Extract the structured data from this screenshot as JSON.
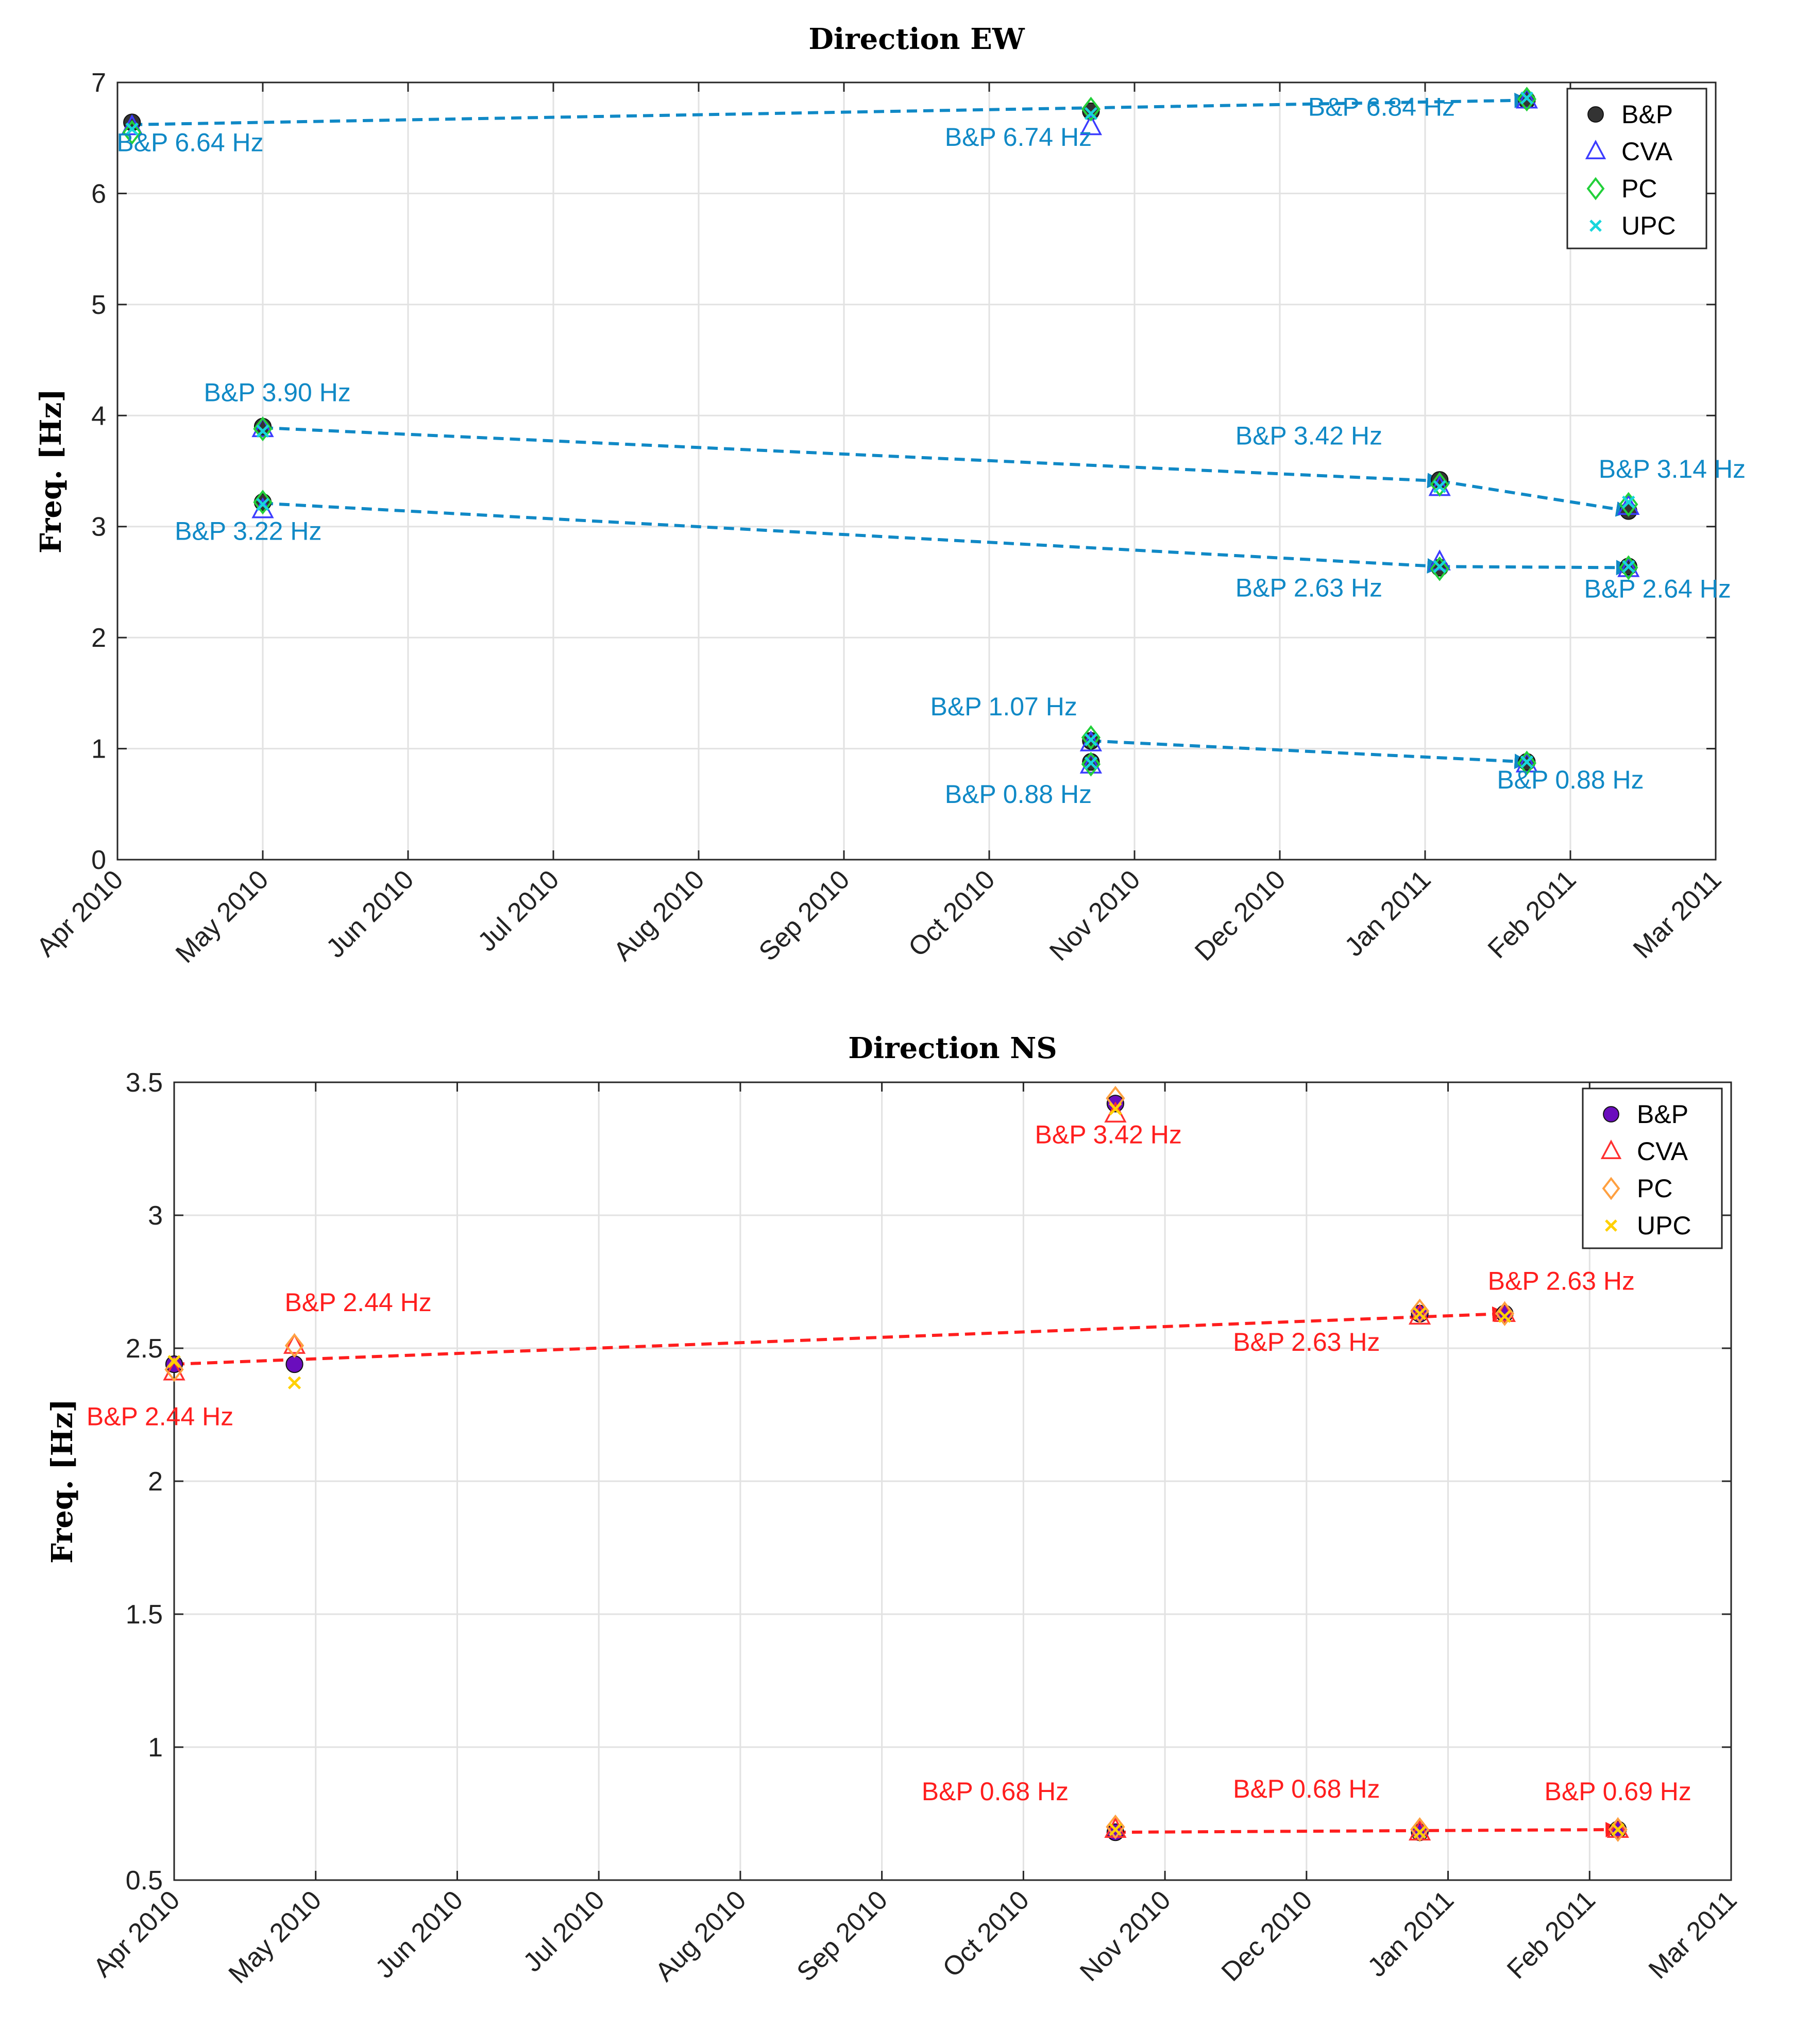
{
  "chart_data": [
    {
      "type": "scatter",
      "title": "Direction EW",
      "ylabel": "Freq. [Hz]",
      "xlabel": "",
      "ylim": [
        0,
        7
      ],
      "yticks": [
        0,
        1,
        2,
        3,
        4,
        5,
        6,
        7
      ],
      "x_tick_labels": [
        "Apr 2010",
        "May 2010",
        "Jun 2010",
        "Jul 2010",
        "Aug 2010",
        "Sep 2010",
        "Oct 2010",
        "Nov 2010",
        "Dec 2010",
        "Jan 2011",
        "Feb 2011",
        "Mar 2011"
      ],
      "x_unit": "months since Apr 2010",
      "color": "#1089c6",
      "legend": {
        "position": "top-right",
        "entries": [
          {
            "name": "B&P",
            "color": "#333333",
            "marker": "circle"
          },
          {
            "name": "CVA",
            "color": "#3c3cff",
            "marker": "triangle"
          },
          {
            "name": "PC",
            "color": "#22d03a",
            "marker": "diamond"
          },
          {
            "name": "UPC",
            "color": "#17d6dc",
            "marker": "x"
          }
        ]
      },
      "series": [
        {
          "name": "B&P",
          "x": [
            0.1,
            1.0,
            1.0,
            6.7,
            6.7,
            6.7,
            9.1,
            9.1,
            9.7,
            9.7,
            10.4,
            10.4
          ],
          "y": [
            6.64,
            3.9,
            3.22,
            6.74,
            1.07,
            0.88,
            3.42,
            2.63,
            6.84,
            0.88,
            3.14,
            2.64
          ]
        },
        {
          "name": "CVA",
          "x": [
            0.1,
            1.0,
            1.0,
            6.7,
            6.7,
            6.7,
            9.1,
            9.1,
            9.7,
            9.7,
            10.4,
            10.4
          ],
          "y": [
            6.6,
            3.88,
            3.15,
            6.6,
            1.05,
            0.85,
            3.35,
            2.68,
            6.84,
            0.86,
            3.18,
            2.62
          ]
        },
        {
          "name": "PC",
          "x": [
            0.1,
            1.0,
            1.0,
            6.7,
            6.7,
            6.7,
            9.1,
            9.1,
            9.7,
            9.7,
            10.4,
            10.4
          ],
          "y": [
            6.55,
            3.88,
            3.22,
            6.76,
            1.1,
            0.86,
            3.38,
            2.62,
            6.85,
            0.87,
            3.2,
            2.63
          ]
        },
        {
          "name": "UPC",
          "x": [
            0.1,
            1.0,
            1.0,
            6.7,
            6.7,
            6.7,
            9.1,
            9.1,
            9.7,
            9.7,
            10.4,
            10.4
          ],
          "y": [
            6.58,
            3.86,
            3.2,
            6.72,
            1.08,
            0.87,
            3.36,
            2.64,
            6.86,
            0.88,
            3.22,
            2.64
          ]
        }
      ],
      "arrows": [
        {
          "from": [
            0.1,
            6.62
          ],
          "to": [
            9.7,
            6.84
          ]
        },
        {
          "from": [
            1.0,
            3.89
          ],
          "to": [
            9.1,
            3.41
          ]
        },
        {
          "from": [
            9.1,
            3.41
          ],
          "to": [
            10.4,
            3.14
          ]
        },
        {
          "from": [
            1.0,
            3.21
          ],
          "to": [
            9.1,
            2.64
          ]
        },
        {
          "from": [
            9.1,
            2.64
          ],
          "to": [
            10.4,
            2.63
          ]
        },
        {
          "from": [
            6.7,
            1.07
          ],
          "to": [
            9.7,
            0.88
          ]
        }
      ],
      "annotations": [
        {
          "text": "B&P 6.64 Hz",
          "x": 0.5,
          "y": 6.38
        },
        {
          "text": "B&P 6.74 Hz",
          "x": 6.2,
          "y": 6.43
        },
        {
          "text": "B&P 6.84 Hz",
          "x": 8.7,
          "y": 6.7
        },
        {
          "text": "B&P 3.90 Hz",
          "x": 1.1,
          "y": 4.13
        },
        {
          "text": "B&P 3.42 Hz",
          "x": 8.2,
          "y": 3.74
        },
        {
          "text": "B&P 3.14 Hz",
          "x": 10.7,
          "y": 3.44
        },
        {
          "text": "B&P 3.22 Hz",
          "x": 0.9,
          "y": 2.88
        },
        {
          "text": "B&P 2.63 Hz",
          "x": 8.2,
          "y": 2.37
        },
        {
          "text": "B&P 2.64 Hz",
          "x": 10.6,
          "y": 2.36
        },
        {
          "text": "B&P 1.07 Hz",
          "x": 6.1,
          "y": 1.3
        },
        {
          "text": "B&P 0.88 Hz",
          "x": 6.2,
          "y": 0.51
        },
        {
          "text": "B&P 0.88 Hz",
          "x": 10.0,
          "y": 0.64
        }
      ]
    },
    {
      "type": "scatter",
      "title": "Direction  NS",
      "ylabel": "Freq. [Hz]",
      "xlabel": "",
      "ylim": [
        0.5,
        3.5
      ],
      "yticks": [
        0.5,
        1,
        1.5,
        2,
        2.5,
        3,
        3.5
      ],
      "x_tick_labels": [
        "Apr 2010",
        "May 2010",
        "Jun 2010",
        "Jul 2010",
        "Aug 2010",
        "Sep 2010",
        "Oct 2010",
        "Nov 2010",
        "Dec 2010",
        "Jan 2011",
        "Feb 2011",
        "Mar 2011"
      ],
      "x_unit": "months since Apr 2010",
      "color": "#ff1e1e",
      "legend": {
        "position": "top-right",
        "entries": [
          {
            "name": "B&P",
            "color": "#6a0dbd",
            "marker": "circle"
          },
          {
            "name": "CVA",
            "color": "#ff3030",
            "marker": "triangle"
          },
          {
            "name": "PC",
            "color": "#ffa040",
            "marker": "diamond"
          },
          {
            "name": "UPC",
            "color": "#ffd000",
            "marker": "x"
          }
        ]
      },
      "series": [
        {
          "name": "B&P",
          "x": [
            0.0,
            0.85,
            6.65,
            6.65,
            8.8,
            8.8,
            9.4,
            10.2
          ],
          "y": [
            2.44,
            2.44,
            3.42,
            0.68,
            2.63,
            0.68,
            2.63,
            0.69
          ]
        },
        {
          "name": "CVA",
          "x": [
            0.0,
            0.85,
            6.65,
            6.65,
            8.8,
            8.8,
            9.4,
            10.2
          ],
          "y": [
            2.41,
            2.51,
            3.38,
            0.69,
            2.62,
            0.68,
            2.63,
            0.69
          ]
        },
        {
          "name": "PC",
          "x": [
            0.0,
            0.85,
            6.65,
            6.65,
            8.8,
            8.8,
            9.4,
            10.2
          ],
          "y": [
            2.42,
            2.51,
            3.44,
            0.7,
            2.64,
            0.69,
            2.63,
            0.69
          ]
        },
        {
          "name": "UPC",
          "x": [
            0.0,
            0.85,
            6.65,
            6.65,
            8.8,
            8.8,
            9.4,
            10.2
          ],
          "y": [
            2.45,
            2.37,
            3.4,
            0.69,
            2.63,
            0.68,
            2.62,
            0.69
          ]
        }
      ],
      "arrows": [
        {
          "from": [
            0.0,
            2.44
          ],
          "to": [
            9.4,
            2.63
          ]
        },
        {
          "from": [
            6.65,
            0.68
          ],
          "to": [
            10.2,
            0.69
          ]
        }
      ],
      "annotations": [
        {
          "text": "B&P 3.42 Hz",
          "x": 6.6,
          "y": 3.27
        },
        {
          "text": "B&P 2.44 Hz",
          "x": 1.3,
          "y": 2.64
        },
        {
          "text": "B&P 2.44 Hz",
          "x": -0.1,
          "y": 2.21
        },
        {
          "text": "B&P 2.63 Hz",
          "x": 8.0,
          "y": 2.49
        },
        {
          "text": "B&P 2.63 Hz",
          "x": 9.8,
          "y": 2.72
        },
        {
          "text": "B&P 0.68 Hz",
          "x": 5.8,
          "y": 0.8
        },
        {
          "text": "B&P 0.68 Hz",
          "x": 8.0,
          "y": 0.81
        },
        {
          "text": "B&P 0.69 Hz",
          "x": 10.2,
          "y": 0.8
        }
      ]
    }
  ]
}
